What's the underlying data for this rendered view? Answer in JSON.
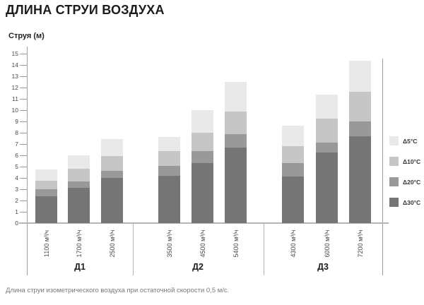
{
  "title": "ДЛИНА СТРУИ ВОЗДУХА",
  "y_axis_title": "Струя (м)",
  "footer": "Длина струи изометрического воздуха при остаточной скорости 0,5 м/с.",
  "chart_data": {
    "type": "bar",
    "stacked": true,
    "title": "ДЛИНА СТРУИ ВОЗДУХА",
    "ylabel": "Струя (м)",
    "ylim": [
      0,
      15
    ],
    "ytick_step": 1,
    "grid": false,
    "legend_position": "right",
    "groups": [
      {
        "label": "Д1",
        "categories": [
          "1100 м³/ч",
          "1700 м³/ч",
          "2500 м³/ч"
        ]
      },
      {
        "label": "Д2",
        "categories": [
          "3500 м³/ч",
          "4500 м³/ч",
          "5400 м³/ч"
        ]
      },
      {
        "label": "Д3",
        "categories": [
          "4300 м³/ч",
          "6000 м³/ч",
          "7200 м³/ч"
        ]
      }
    ],
    "series_note": "series listed bottom-to-top of stack; values follow category order Д1..Д3",
    "series": [
      {
        "name": "Δ30°C",
        "color": "#757575",
        "values": [
          2.4,
          3.1,
          4.0,
          4.2,
          5.3,
          6.7,
          4.1,
          6.25,
          7.7
        ]
      },
      {
        "name": "Δ20°C",
        "color": "#999999",
        "values": [
          0.6,
          0.6,
          0.65,
          0.85,
          1.1,
          1.2,
          1.2,
          0.85,
          1.3
        ]
      },
      {
        "name": "Δ10°C",
        "color": "#c6c6c6",
        "values": [
          0.75,
          1.1,
          1.3,
          1.3,
          1.6,
          2.0,
          1.5,
          2.15,
          2.6
        ]
      },
      {
        "name": "Δ5°C",
        "color": "#e9e9e9",
        "values": [
          1.0,
          1.2,
          1.5,
          1.3,
          2.0,
          2.6,
          1.8,
          2.15,
          2.8
        ]
      }
    ],
    "stack_totals": [
      4.75,
      6.0,
      7.45,
      7.65,
      10.0,
      12.5,
      8.6,
      11.4,
      14.4
    ]
  },
  "colors": {
    "axis": "#9e9e9e",
    "baseline": "#b4b4b4",
    "text_dark": "#1c1c1c",
    "text_muted": "#4a4a4a",
    "footer_gray": "#787878"
  }
}
